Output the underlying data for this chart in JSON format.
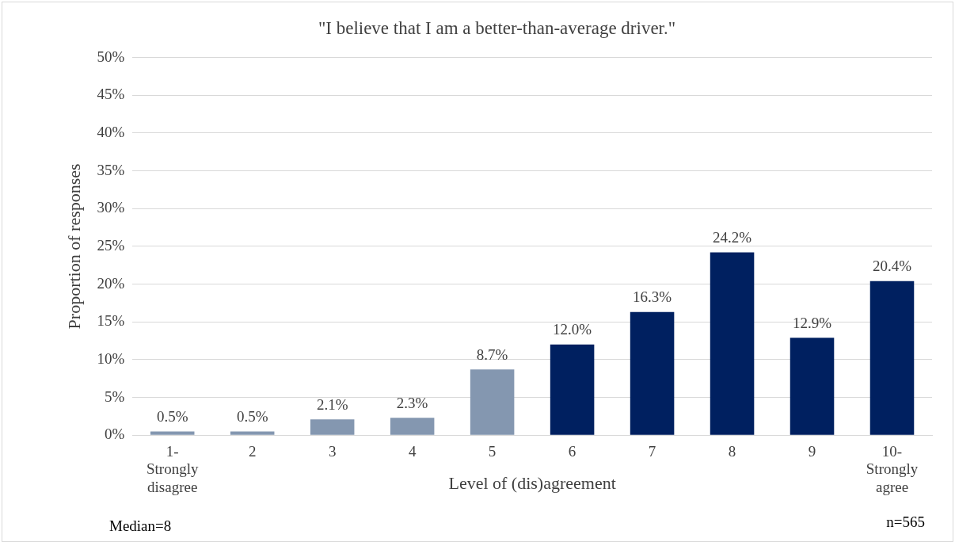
{
  "chart_data": {
    "type": "bar",
    "title": "\"I believe that I am a better-than-average driver.\"",
    "xlabel": "Level of (dis)agreement",
    "ylabel": "Proportion of responses",
    "categories": [
      "1- Strongly disagree",
      "2",
      "3",
      "4",
      "5",
      "6",
      "7",
      "8",
      "9",
      "10- Strongly agree"
    ],
    "values": [
      0.5,
      0.5,
      2.1,
      2.3,
      8.7,
      12.0,
      16.3,
      24.2,
      12.9,
      20.4
    ],
    "colors": [
      "#8497b0",
      "#8497b0",
      "#8497b0",
      "#8497b0",
      "#8497b0",
      "#002060",
      "#002060",
      "#002060",
      "#002060",
      "#002060"
    ],
    "value_labels": [
      "0.5%",
      "0.5%",
      "2.1%",
      "2.3%",
      "8.7%",
      "12.0%",
      "16.3%",
      "24.2%",
      "12.9%",
      "20.4%"
    ],
    "ylim": [
      0,
      50
    ],
    "yticks": [
      {
        "value": 0,
        "label": "0%"
      },
      {
        "value": 5,
        "label": "5%"
      },
      {
        "value": 10,
        "label": "10%"
      },
      {
        "value": 15,
        "label": "15%"
      },
      {
        "value": 20,
        "label": "20%"
      },
      {
        "value": 25,
        "label": "25%"
      },
      {
        "value": 30,
        "label": "30%"
      },
      {
        "value": 35,
        "label": "35%"
      },
      {
        "value": 40,
        "label": "40%"
      },
      {
        "value": 45,
        "label": "45%"
      },
      {
        "value": 50,
        "label": "50%"
      }
    ],
    "grid": "y",
    "legend": false,
    "annotations": [
      "Median=8",
      "n=565"
    ]
  }
}
